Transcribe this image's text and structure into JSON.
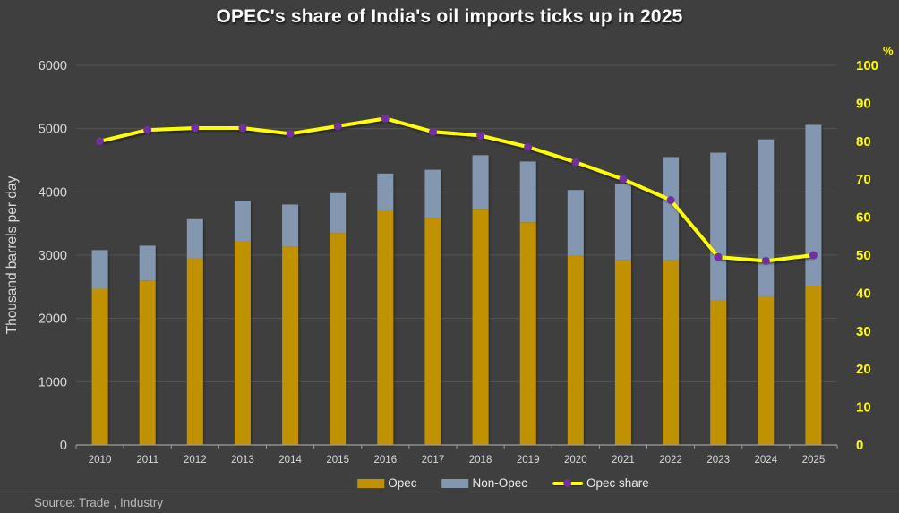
{
  "title": "OPEC's share of India's oil imports ticks up in 2025",
  "source": "Source: Trade , Industry",
  "legend": {
    "opec": "Opec",
    "non_opec": "Non-Opec",
    "opec_share": "Opec share"
  },
  "left_axis": {
    "title": "Thousand barrels per day",
    "ticks": [
      0,
      1000,
      2000,
      3000,
      4000,
      5000,
      6000
    ],
    "max": 6000
  },
  "right_axis": {
    "unit": "%",
    "ticks": [
      0,
      10,
      20,
      30,
      40,
      50,
      60,
      70,
      80,
      90,
      100
    ],
    "max": 100
  },
  "chart_data": {
    "type": "bar",
    "subtype": "stacked-bars-with-line",
    "title": "OPEC's share of India's oil imports ticks up in 2025",
    "xlabel": "",
    "ylabel": "Thousand barrels per day",
    "ylabel_right": "%",
    "ylim_left": [
      0,
      6000
    ],
    "ylim_right": [
      0,
      100
    ],
    "grid": "horizontal",
    "legend_position": "bottom",
    "categories": [
      2010,
      2011,
      2012,
      2013,
      2014,
      2015,
      2016,
      2017,
      2018,
      2019,
      2020,
      2021,
      2022,
      2023,
      2024,
      2025
    ],
    "series": [
      {
        "name": "Opec",
        "type": "bar",
        "stack": "imports",
        "axis": "left",
        "color": "#c09100",
        "values": [
          2470,
          2600,
          2950,
          3220,
          3130,
          3350,
          3700,
          3590,
          3720,
          3520,
          2990,
          2920,
          2920,
          2280,
          2350,
          2510
        ]
      },
      {
        "name": "Non-Opec",
        "type": "bar",
        "stack": "imports",
        "axis": "left",
        "color": "#8497b0",
        "values": [
          610,
          550,
          620,
          640,
          670,
          630,
          590,
          760,
          860,
          960,
          1040,
          1210,
          1630,
          2340,
          2480,
          2550
        ]
      },
      {
        "name": "Opec share",
        "type": "line",
        "axis": "right",
        "color": "#ffff00",
        "marker_color": "#7030a0",
        "values": [
          80,
          83,
          83.5,
          83.5,
          82,
          84,
          86,
          82.5,
          81.5,
          78.5,
          74.5,
          70,
          64.5,
          49.5,
          48.5,
          50
        ]
      }
    ]
  },
  "colors": {
    "background": "#3f3f3f",
    "grid": "#56565a",
    "axis_line": "#9e9e9e",
    "tick_text": "#d9d9d9",
    "right_axis_text": "#ffff00",
    "opec_bar": "#c09100",
    "non_opec_bar": "#8497b0",
    "share_line": "#ffff00",
    "share_marker": "#7030a0"
  }
}
